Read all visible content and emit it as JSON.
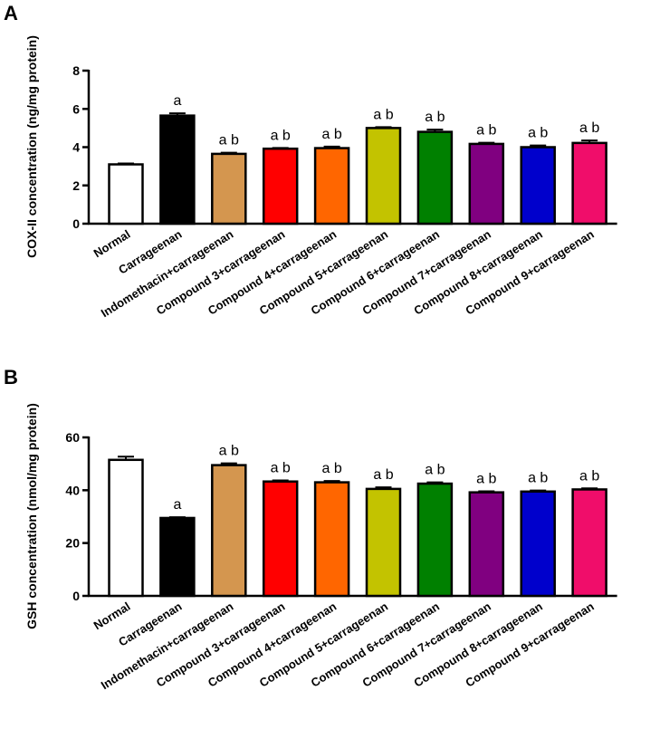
{
  "chart_data": [
    {
      "panel_label": "A",
      "type": "bar",
      "ylabel": "COX-II concentration (ng/mg protein)",
      "ylim": [
        0,
        8
      ],
      "yticks": [
        0,
        2,
        4,
        6,
        8
      ],
      "categories": [
        "Normal",
        "Carrageenan",
        "Indomethacin+carrageenan",
        "Compound 3+carrageenan",
        "Compound 4+carrageenan",
        "Compound 5+carrageenan",
        "Compound 6+carrageenan",
        "Compound 7+carrageenan",
        "Compound 8+carrageenan",
        "Compound 9+carrageenan"
      ],
      "values": [
        3.1,
        5.65,
        3.65,
        3.92,
        3.95,
        5.0,
        4.8,
        4.17,
        4.0,
        4.22
      ],
      "errors": [
        0.05,
        0.12,
        0.06,
        0.04,
        0.08,
        0.05,
        0.12,
        0.06,
        0.09,
        0.13
      ],
      "annotations": [
        "",
        "a",
        "a b",
        "a b",
        "a b",
        "a b",
        "a b",
        "a b",
        "a b",
        "a b"
      ],
      "colors": [
        "#ffffff",
        "#000000",
        "#d4964f",
        "#ff0000",
        "#ff6600",
        "#c3c300",
        "#008000",
        "#800080",
        "#0000cc",
        "#f00d6a"
      ]
    },
    {
      "panel_label": "B",
      "type": "bar",
      "ylabel": "GSH concentration (nmol/mg protein)",
      "ylim": [
        0,
        60
      ],
      "yticks": [
        0,
        20,
        40,
        60
      ],
      "categories": [
        "Normal",
        "Carrageenan",
        "Indomethacin+carrageenan",
        "Compound 3+carrageenan",
        "Compound 4+carrageenan",
        "Compound 5+carrageenan",
        "Compound 6+carrageenan",
        "Compound 7+carrageenan",
        "Compound 8+carrageenan",
        "Compound 9+carrageenan"
      ],
      "values": [
        51.5,
        29.5,
        49.5,
        43.3,
        43.0,
        40.5,
        42.5,
        39.2,
        39.5,
        40.3
      ],
      "errors": [
        1.2,
        0.3,
        0.7,
        0.4,
        0.5,
        0.6,
        0.5,
        0.4,
        0.4,
        0.4
      ],
      "annotations": [
        "",
        "a",
        "a b",
        "a b",
        "a b",
        "a b",
        "a b",
        "a b",
        "a b",
        "a b"
      ],
      "colors": [
        "#ffffff",
        "#000000",
        "#d4964f",
        "#ff0000",
        "#ff6600",
        "#c3c300",
        "#008000",
        "#800080",
        "#0000cc",
        "#f00d6a"
      ]
    }
  ]
}
